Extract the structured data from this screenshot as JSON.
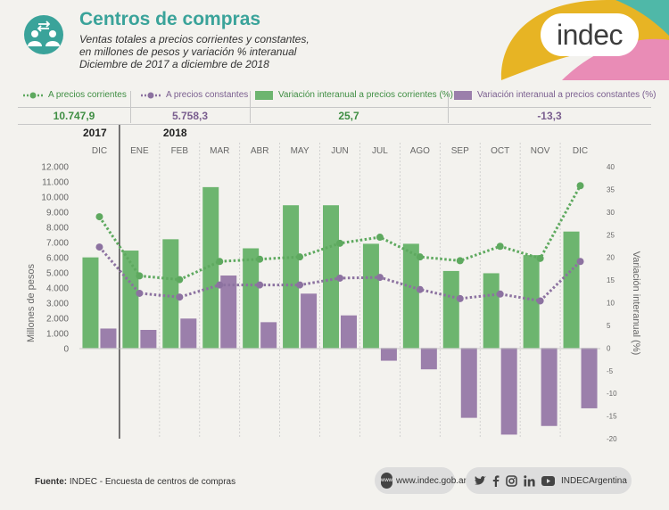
{
  "header": {
    "title": "Centros de compras",
    "subtitle_lines": [
      "Ventas totales a precios corrientes y constantes,",
      "en millones de pesos y variación % interanual",
      "Diciembre de 2017 a diciembre de 2018"
    ],
    "logo_text": "indec"
  },
  "legend": {
    "items": [
      {
        "label": "A precios corrientes",
        "value": "10.747,9"
      },
      {
        "label": "A precios constantes",
        "value": "5.758,3"
      },
      {
        "label": "Variación interanual a precios corrientes (%)",
        "value": "25,7"
      },
      {
        "label": "Variación interanual a precios constantes (%)",
        "value": "-13,3"
      }
    ]
  },
  "colors": {
    "green": "#6db56f",
    "green_line": "#5ea95f",
    "purple": "#9b7fab",
    "purple_line": "#8c72a0",
    "teal": "#3aa39a",
    "axis_text": "#666666"
  },
  "chart_data": {
    "type": "bar",
    "years": [
      {
        "label": "2017",
        "index": 0
      },
      {
        "label": "2018",
        "index": 2
      }
    ],
    "categories": [
      "DIC",
      "ENE",
      "FEB",
      "MAR",
      "ABR",
      "MAY",
      "JUN",
      "JUL",
      "AGO",
      "SEP",
      "OCT",
      "NOV",
      "DIC"
    ],
    "series": [
      {
        "name": "A precios corrientes",
        "kind": "line",
        "axis": "left",
        "values": [
          8700,
          4800,
          4550,
          5750,
          5900,
          6050,
          6950,
          7350,
          6050,
          5800,
          6750,
          5950,
          10750
        ]
      },
      {
        "name": "A precios constantes",
        "kind": "line",
        "axis": "left",
        "values": [
          6700,
          3650,
          3400,
          4200,
          4200,
          4200,
          4650,
          4700,
          3900,
          3300,
          3600,
          3150,
          5750
        ]
      },
      {
        "name": "Variación interanual a precios corrientes (%)",
        "kind": "bar",
        "axis": "right",
        "values": [
          20,
          21.5,
          24,
          35.5,
          22,
          31.5,
          31.5,
          23,
          23,
          17,
          16.5,
          20.5,
          25.7
        ]
      },
      {
        "name": "Variación interanual a precios constantes (%)",
        "kind": "bar",
        "axis": "right",
        "values": [
          4.3,
          4,
          6.5,
          16,
          5.7,
          12,
          7.2,
          -2.8,
          -4.7,
          -15.4,
          -19.1,
          -17.2,
          -13.3
        ]
      }
    ],
    "ylabel": "Millones de pesos",
    "y2label": "Variación interanual (%)",
    "ylim": [
      0,
      12000
    ],
    "y2lim": [
      -20,
      40
    ],
    "yticks": [
      "0",
      "1.000",
      "2.000",
      "3.000",
      "4.000",
      "5.000",
      "6.000",
      "7.000",
      "8.000",
      "9.000",
      "10.000",
      "11.000",
      "12.000"
    ],
    "y2ticks": [
      "-20",
      "-15",
      "-10",
      "-5",
      "0",
      "5",
      "10",
      "15",
      "20",
      "25",
      "30",
      "35",
      "40"
    ]
  },
  "footer": {
    "source_label": "Fuente:",
    "source_text": "INDEC - Encuesta de centros de compras",
    "website": "www.indec.gob.ar",
    "www_badge": "www",
    "social_handle": "INDECArgentina",
    "social_icons": [
      "twitter-icon",
      "facebook-icon",
      "instagram-icon",
      "linkedin-icon",
      "youtube-icon"
    ]
  }
}
